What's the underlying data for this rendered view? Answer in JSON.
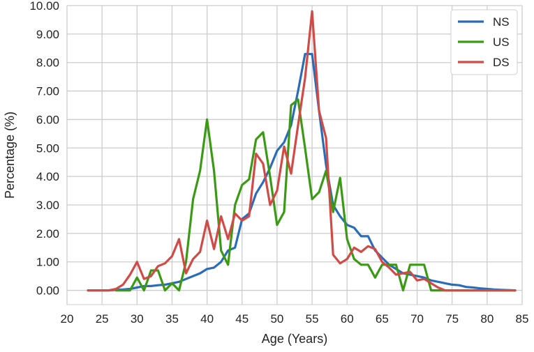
{
  "chart_data": {
    "type": "line",
    "title": "",
    "xlabel": "Age (Years)",
    "ylabel": "Percentage (%)",
    "xlim": [
      20,
      85
    ],
    "ylim": [
      -0.5,
      10.0
    ],
    "xticks": [
      20,
      25,
      30,
      35,
      40,
      45,
      50,
      55,
      60,
      65,
      70,
      75,
      80,
      85
    ],
    "yticks": [
      0,
      1,
      2,
      3,
      4,
      5,
      6,
      7,
      8,
      9,
      10
    ],
    "ytick_labels": [
      "0.00",
      "1.00",
      "2.00",
      "3.00",
      "4.00",
      "5.00",
      "6.00",
      "7.00",
      "8.00",
      "9.00",
      "10.00"
    ],
    "grid": true,
    "legend_position": "top-right",
    "series": [
      {
        "name": "NS",
        "color": "#2b6cb8",
        "x": [
          23,
          24,
          25,
          26,
          27,
          28,
          29,
          30,
          31,
          32,
          33,
          34,
          35,
          36,
          37,
          38,
          39,
          40,
          41,
          42,
          43,
          44,
          45,
          46,
          47,
          48,
          49,
          50,
          51,
          52,
          53,
          54,
          55,
          56,
          57,
          58,
          59,
          60,
          61,
          62,
          63,
          64,
          65,
          66,
          67,
          68,
          69,
          70,
          71,
          72,
          73,
          74,
          75,
          76,
          77,
          78,
          79,
          80,
          81,
          82,
          83,
          84
        ],
        "y": [
          0,
          0,
          0,
          0,
          0.02,
          0.03,
          0.05,
          0.1,
          0.15,
          0.15,
          0.18,
          0.2,
          0.25,
          0.3,
          0.4,
          0.5,
          0.6,
          0.75,
          0.8,
          1.0,
          1.4,
          1.5,
          2.5,
          2.7,
          3.4,
          3.8,
          4.3,
          4.9,
          5.2,
          5.8,
          7.0,
          8.3,
          8.3,
          6.3,
          4.4,
          3.0,
          2.6,
          2.3,
          2.2,
          1.9,
          1.9,
          1.4,
          1.15,
          0.9,
          0.75,
          0.6,
          0.55,
          0.5,
          0.45,
          0.35,
          0.3,
          0.25,
          0.2,
          0.18,
          0.12,
          0.1,
          0.07,
          0.05,
          0.03,
          0.02,
          0.01,
          0
        ]
      },
      {
        "name": "US",
        "color": "#3a9a14",
        "x": [
          27,
          28,
          29,
          30,
          31,
          32,
          33,
          34,
          35,
          36,
          37,
          38,
          39,
          40,
          41,
          42,
          43,
          44,
          45,
          46,
          47,
          48,
          49,
          50,
          51,
          52,
          53,
          54,
          55,
          56,
          57,
          58,
          59,
          60,
          61,
          62,
          63,
          64,
          65,
          66,
          67,
          68,
          69,
          70,
          71,
          72,
          73,
          74,
          75,
          76,
          77,
          78,
          79,
          80,
          81,
          82,
          83,
          84
        ],
        "y": [
          0,
          0,
          0,
          0.45,
          0,
          0.7,
          0.7,
          0,
          0.25,
          0,
          1.0,
          3.2,
          4.2,
          6.0,
          4.2,
          1.4,
          0.9,
          3.0,
          3.7,
          3.9,
          5.3,
          5.55,
          4.0,
          2.3,
          2.75,
          6.5,
          6.7,
          5.0,
          3.2,
          3.45,
          4.2,
          2.75,
          3.95,
          1.8,
          1.1,
          0.9,
          0.9,
          0.45,
          0.9,
          0.9,
          0.9,
          0,
          0.9,
          0.9,
          0.9,
          0,
          0,
          0,
          0,
          0,
          0,
          0,
          0,
          0,
          0,
          0,
          0,
          0
        ]
      },
      {
        "name": "DS",
        "color": "#d24a45",
        "x": [
          23,
          24,
          25,
          26,
          27,
          28,
          29,
          30,
          31,
          32,
          33,
          34,
          35,
          36,
          37,
          38,
          39,
          40,
          41,
          42,
          43,
          44,
          45,
          46,
          47,
          48,
          49,
          50,
          51,
          52,
          53,
          54,
          55,
          56,
          57,
          58,
          59,
          60,
          61,
          62,
          63,
          64,
          65,
          66,
          67,
          68,
          69,
          70,
          71,
          72,
          73,
          74,
          75,
          76,
          77,
          78,
          79,
          80,
          81,
          82,
          83,
          84
        ],
        "y": [
          0,
          0,
          0,
          0,
          0.05,
          0.2,
          0.55,
          1.0,
          0.4,
          0.5,
          0.85,
          0.95,
          1.2,
          1.8,
          0.6,
          1.1,
          1.35,
          2.45,
          1.45,
          2.6,
          1.8,
          2.7,
          2.45,
          2.6,
          4.8,
          4.45,
          3.0,
          3.5,
          5.05,
          4.1,
          5.8,
          7.45,
          9.8,
          6.3,
          5.35,
          1.25,
          0.95,
          1.1,
          1.5,
          1.35,
          1.55,
          1.45,
          1.0,
          0.8,
          0.55,
          0.6,
          0.65,
          0.35,
          0.4,
          0.25,
          0.1,
          0,
          0,
          0,
          0,
          0,
          0,
          0,
          0,
          0,
          0,
          0
        ]
      }
    ]
  }
}
